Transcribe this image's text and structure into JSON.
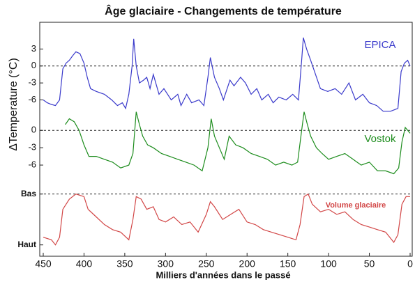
{
  "chart_data": {
    "type": "line",
    "title": "Âge glaciaire - Changements de température",
    "xlabel": "Milliers d'années dans le passé",
    "ylabel": "ΔTemperature (°C)",
    "xlim": [
      450,
      0
    ],
    "xticks": [
      450,
      400,
      350,
      300,
      250,
      200,
      150,
      100,
      50,
      0
    ],
    "series": [
      {
        "name": "EPICA",
        "color": "#3a3acb",
        "ylim": [
          -10,
          6
        ],
        "yticks": [
          3,
          0,
          -3,
          -6
        ],
        "reference_lines": [
          0
        ],
        "x": [
          450,
          445,
          440,
          435,
          430,
          426,
          422,
          418,
          414,
          410,
          405,
          400,
          396,
          392,
          385,
          375,
          366,
          359,
          353,
          349,
          345,
          341,
          339,
          336,
          332,
          327,
          323,
          319,
          315,
          308,
          302,
          293,
          285,
          281,
          274,
          268,
          259,
          253,
          248,
          245,
          240,
          234,
          229,
          221,
          216,
          208,
          202,
          195,
          188,
          182,
          174,
          168,
          161,
          152,
          144,
          137,
          133,
          131,
          127,
          122,
          116,
          110,
          101,
          92,
          84,
          75,
          67,
          58,
          50,
          41,
          33,
          24,
          15,
          11,
          7,
          3,
          0
        ],
        "values": [
          -6,
          -6.5,
          -6.8,
          -7,
          -6,
          -0.5,
          0.5,
          1,
          1.8,
          2.5,
          2.2,
          0.5,
          -2,
          -4,
          -4.5,
          -5,
          -6,
          -7,
          -6.5,
          -7.5,
          -5,
          0,
          4.8,
          0,
          -3,
          -2.5,
          -2,
          -4,
          -1.5,
          -5,
          -4,
          -6,
          -5,
          -7,
          -5,
          -6.5,
          -6,
          -7,
          -2,
          1.5,
          -2,
          -4,
          -6,
          -2.5,
          -3.5,
          -2,
          -3,
          -5,
          -4,
          -6,
          -5,
          -6.5,
          -5.5,
          -6,
          -5,
          -6,
          1,
          5,
          3,
          1,
          -1.5,
          -4,
          -4.5,
          -4,
          -5,
          -3,
          -6,
          -5,
          -6.5,
          -7,
          -8,
          -8,
          -7.5,
          -1,
          0.5,
          1,
          0
        ]
      },
      {
        "name": "Vostok",
        "color": "#1c8c1c",
        "ylim": [
          -9,
          4
        ],
        "yticks": [
          0,
          -3,
          -6
        ],
        "reference_lines": [
          0
        ],
        "x": [
          423,
          418,
          412,
          406,
          400,
          394,
          385,
          375,
          365,
          355,
          345,
          340,
          336,
          332,
          328,
          322,
          315,
          305,
          295,
          285,
          275,
          265,
          255,
          248,
          244,
          240,
          234,
          228,
          222,
          214,
          205,
          195,
          185,
          175,
          165,
          155,
          145,
          138,
          133,
          130,
          126,
          122,
          115,
          108,
          100,
          90,
          80,
          70,
          60,
          50,
          40,
          30,
          20,
          14,
          10,
          6,
          3,
          0
        ],
        "values": [
          1,
          2,
          1.5,
          0,
          -2.5,
          -4.5,
          -4.5,
          -5,
          -5.5,
          -6.5,
          -6,
          -4,
          3.2,
          1,
          -1,
          -2.5,
          -3,
          -4,
          -4.5,
          -5,
          -5.5,
          -6,
          -7,
          -3,
          2,
          -1,
          -3,
          -5,
          -1,
          -2.5,
          -3,
          -4,
          -4.5,
          -5,
          -6,
          -5.5,
          -6,
          -5.5,
          0,
          3.2,
          1,
          -1,
          -3,
          -4,
          -5,
          -4.5,
          -4,
          -5,
          -6,
          -5.5,
          -7,
          -7,
          -7.5,
          -6.5,
          -2,
          0.5,
          0,
          -0.5
        ]
      },
      {
        "name": "Volume glaciaire",
        "color": "#d24646",
        "ylim": [
          1.1,
          -0.05
        ],
        "yticks": [
          {
            "value": 0,
            "label": "Bas"
          },
          {
            "value": 1,
            "label": "Haut"
          }
        ],
        "reference_lines": [
          0
        ],
        "x": [
          450,
          440,
          435,
          430,
          426,
          418,
          410,
          400,
          395,
          385,
          375,
          365,
          355,
          345,
          340,
          336,
          330,
          323,
          315,
          308,
          300,
          290,
          280,
          270,
          260,
          250,
          245,
          240,
          230,
          220,
          210,
          200,
          190,
          180,
          170,
          160,
          150,
          140,
          135,
          130,
          125,
          120,
          110,
          100,
          90,
          80,
          70,
          60,
          50,
          40,
          30,
          20,
          15,
          10,
          5,
          0
        ],
        "values": [
          0.85,
          0.9,
          1,
          0.85,
          0.3,
          0.1,
          0,
          0.05,
          0.3,
          0.45,
          0.6,
          0.7,
          0.75,
          0.9,
          0.5,
          0.05,
          0.1,
          0.3,
          0.25,
          0.5,
          0.55,
          0.45,
          0.6,
          0.55,
          0.75,
          0.4,
          0.15,
          0.25,
          0.5,
          0.4,
          0.3,
          0.55,
          0.6,
          0.7,
          0.75,
          0.8,
          0.85,
          0.9,
          0.6,
          0.05,
          0,
          0.2,
          0.35,
          0.3,
          0.4,
          0.35,
          0.5,
          0.6,
          0.65,
          0.7,
          0.75,
          0.95,
          0.8,
          0.2,
          0.05,
          0.05
        ]
      }
    ]
  }
}
